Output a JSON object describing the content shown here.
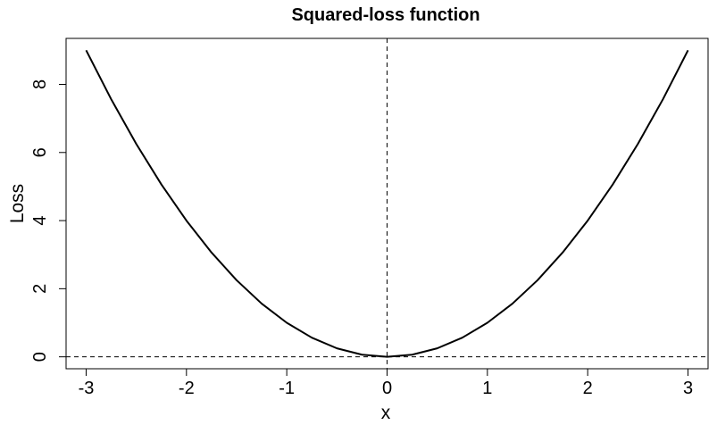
{
  "chart_data": {
    "type": "line",
    "title": "Squared-loss function",
    "xlabel": "x",
    "ylabel": "Loss",
    "xlim": [
      -3.2,
      3.2
    ],
    "ylim": [
      -0.35,
      9.35
    ],
    "x_ticks": [
      -3,
      -2,
      -1,
      0,
      1,
      2,
      3
    ],
    "x_tick_labels": [
      "-3",
      "-2",
      "-1",
      "0",
      "1",
      "2",
      "3"
    ],
    "y_ticks": [
      0,
      2,
      4,
      6,
      8
    ],
    "y_tick_labels": [
      "0",
      "2",
      "4",
      "6",
      "8"
    ],
    "series": [
      {
        "x": [
          -3,
          -2.75,
          -2.5,
          -2.25,
          -2,
          -1.75,
          -1.5,
          -1.25,
          -1,
          -0.75,
          -0.5,
          -0.25,
          0,
          0.25,
          0.5,
          0.75,
          1,
          1.25,
          1.5,
          1.75,
          2,
          2.25,
          2.5,
          2.75,
          3
        ],
        "y": [
          9,
          7.5625,
          6.25,
          5.0625,
          4,
          3.0625,
          2.25,
          1.5625,
          1,
          0.5625,
          0.25,
          0.0625,
          0,
          0.0625,
          0.25,
          0.5625,
          1,
          1.5625,
          2.25,
          3.0625,
          4,
          5.0625,
          6.25,
          7.5625,
          9
        ],
        "color": "#000000"
      }
    ],
    "reference_lines": [
      {
        "orientation": "vertical",
        "value": 0,
        "style": "dashed"
      },
      {
        "orientation": "horizontal",
        "value": 0,
        "style": "dashed"
      }
    ],
    "grid": false,
    "legend": "none"
  }
}
